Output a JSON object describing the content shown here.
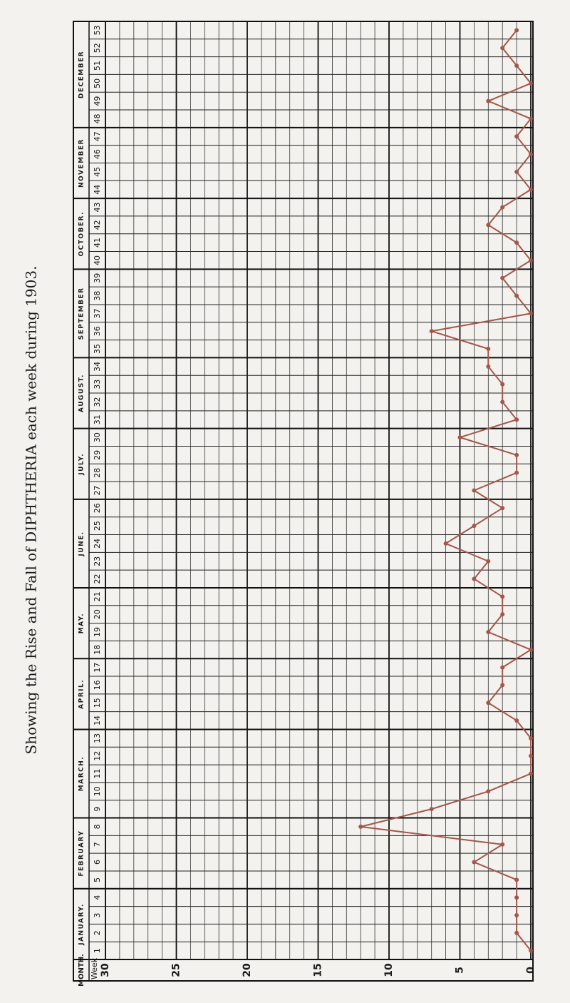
{
  "chart_data": {
    "type": "line",
    "title": "Showing the Rise and Fall of DIPHTHERIA each week during 1903.",
    "month_header": "MONTH.",
    "week_header": "Week",
    "months": [
      {
        "name": "JANUARY.",
        "weeks": [
          1,
          2,
          3,
          4
        ]
      },
      {
        "name": "FEBRUARY",
        "weeks": [
          5,
          6,
          7,
          8
        ]
      },
      {
        "name": "MARCH.",
        "weeks": [
          9,
          10,
          11,
          12,
          13
        ]
      },
      {
        "name": "APRIL.",
        "weeks": [
          14,
          15,
          16,
          17
        ]
      },
      {
        "name": "MAY.",
        "weeks": [
          18,
          19,
          20,
          21
        ]
      },
      {
        "name": "JUNE.",
        "weeks": [
          22,
          23,
          24,
          25,
          26
        ]
      },
      {
        "name": "JULY.",
        "weeks": [
          27,
          28,
          29,
          30
        ]
      },
      {
        "name": "AUGUST.",
        "weeks": [
          31,
          32,
          33,
          34
        ]
      },
      {
        "name": "SEPTEMBER",
        "weeks": [
          35,
          36,
          37,
          38,
          39
        ]
      },
      {
        "name": "OCTOBER.",
        "weeks": [
          40,
          41,
          42,
          43
        ]
      },
      {
        "name": "NOVEMBER",
        "weeks": [
          44,
          45,
          46,
          47
        ]
      },
      {
        "name": "DECEMBER",
        "weeks": [
          48,
          49,
          50,
          51,
          52,
          53
        ]
      }
    ],
    "values": [
      0,
      1,
      1,
      1,
      1,
      4,
      2,
      12,
      7,
      3,
      0,
      0,
      0,
      1,
      3,
      2,
      2,
      0,
      3,
      2,
      2,
      4,
      3,
      6,
      4,
      2,
      4,
      1,
      1,
      5,
      1,
      2,
      2,
      3,
      3,
      7,
      0,
      1,
      2,
      0,
      1,
      3,
      2,
      0,
      1,
      0,
      1,
      0,
      3,
      0,
      1,
      2,
      1
    ],
    "color": "#a3574b",
    "ylim": [
      0,
      30
    ],
    "yticks": [
      0,
      5,
      10,
      15,
      20,
      25,
      30
    ],
    "grid": true
  }
}
